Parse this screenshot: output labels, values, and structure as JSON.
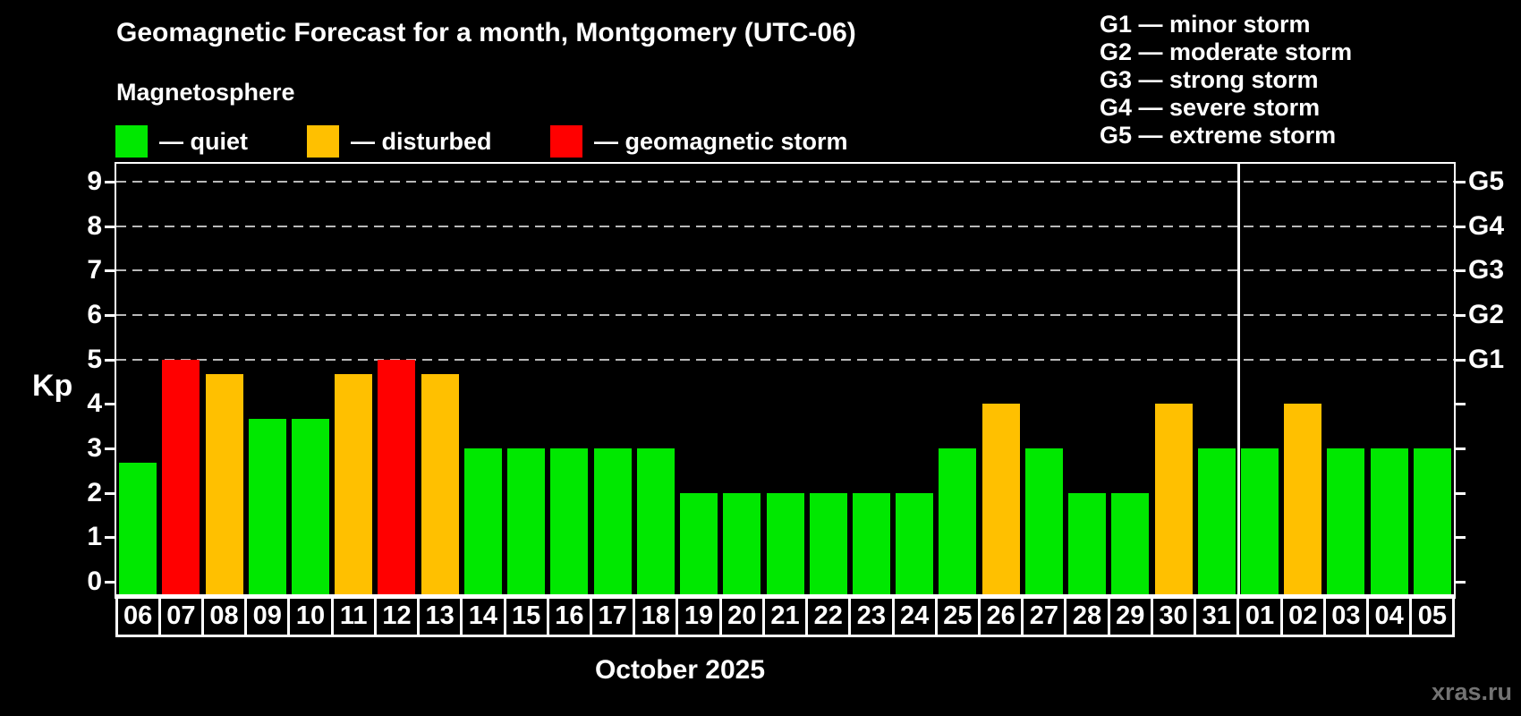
{
  "header": {
    "title": "Geomagnetic Forecast for a month, Montgomery (UTC-06)",
    "subtitle": "Magnetosphere"
  },
  "legend": {
    "items": [
      {
        "name": "quiet",
        "label": "— quiet",
        "color": "#00e800"
      },
      {
        "name": "disturbed",
        "label": "— disturbed",
        "color": "#ffc000"
      },
      {
        "name": "storm",
        "label": "— geomagnetic storm",
        "color": "#ff0000"
      }
    ]
  },
  "g_scale_legend": {
    "items": [
      "G1 — minor storm",
      "G2 — moderate storm",
      "G3 — strong storm",
      "G4 — severe storm",
      "G5 — extreme storm"
    ]
  },
  "axes": {
    "y_label": "Kp",
    "y_ticks": [
      0,
      1,
      2,
      3,
      4,
      5,
      6,
      7,
      8,
      9
    ],
    "right_labels": [
      {
        "kp": 5,
        "label": "G1"
      },
      {
        "kp": 6,
        "label": "G2"
      },
      {
        "kp": 7,
        "label": "G3"
      },
      {
        "kp": 8,
        "label": "G4"
      },
      {
        "kp": 9,
        "label": "G5"
      }
    ]
  },
  "footer": {
    "month_label": "October 2025",
    "watermark": "xras.ru"
  },
  "colors": {
    "background": "#000000",
    "axis": "#ffffff",
    "gridline": "#b9b9b9",
    "quiet": "#00e800",
    "disturbed": "#ffc000",
    "storm": "#ff0000",
    "watermark": "#737373"
  },
  "chart_data": {
    "type": "bar",
    "title": "Geomagnetic Forecast for a month, Montgomery (UTC-06)",
    "xlabel": "October 2025",
    "ylabel": "Kp",
    "ylim": [
      0,
      9
    ],
    "grid": "dashed horizontal lines at storm thresholds only",
    "gridlines_at": [
      5,
      6,
      7,
      8,
      9
    ],
    "legend_position": "top-left",
    "month_separator_index": 26,
    "categories": [
      "06",
      "07",
      "08",
      "09",
      "10",
      "11",
      "12",
      "13",
      "14",
      "15",
      "16",
      "17",
      "18",
      "19",
      "20",
      "21",
      "22",
      "23",
      "24",
      "25",
      "26",
      "27",
      "28",
      "29",
      "30",
      "31",
      "01",
      "02",
      "03",
      "04",
      "05"
    ],
    "series": [
      {
        "name": "Kp forecast",
        "points": [
          {
            "day": "06",
            "value": 2.67,
            "status": "quiet"
          },
          {
            "day": "07",
            "value": 5.0,
            "status": "storm"
          },
          {
            "day": "08",
            "value": 4.67,
            "status": "disturbed"
          },
          {
            "day": "09",
            "value": 3.67,
            "status": "quiet"
          },
          {
            "day": "10",
            "value": 3.67,
            "status": "quiet"
          },
          {
            "day": "11",
            "value": 4.67,
            "status": "disturbed"
          },
          {
            "day": "12",
            "value": 5.0,
            "status": "storm"
          },
          {
            "day": "13",
            "value": 4.67,
            "status": "disturbed"
          },
          {
            "day": "14",
            "value": 3.0,
            "status": "quiet"
          },
          {
            "day": "15",
            "value": 3.0,
            "status": "quiet"
          },
          {
            "day": "16",
            "value": 3.0,
            "status": "quiet"
          },
          {
            "day": "17",
            "value": 3.0,
            "status": "quiet"
          },
          {
            "day": "18",
            "value": 3.0,
            "status": "quiet"
          },
          {
            "day": "19",
            "value": 2.0,
            "status": "quiet"
          },
          {
            "day": "20",
            "value": 2.0,
            "status": "quiet"
          },
          {
            "day": "21",
            "value": 2.0,
            "status": "quiet"
          },
          {
            "day": "22",
            "value": 2.0,
            "status": "quiet"
          },
          {
            "day": "23",
            "value": 2.0,
            "status": "quiet"
          },
          {
            "day": "24",
            "value": 2.0,
            "status": "quiet"
          },
          {
            "day": "25",
            "value": 3.0,
            "status": "quiet"
          },
          {
            "day": "26",
            "value": 4.0,
            "status": "disturbed"
          },
          {
            "day": "27",
            "value": 3.0,
            "status": "quiet"
          },
          {
            "day": "28",
            "value": 2.0,
            "status": "quiet"
          },
          {
            "day": "29",
            "value": 2.0,
            "status": "quiet"
          },
          {
            "day": "30",
            "value": 4.0,
            "status": "disturbed"
          },
          {
            "day": "31",
            "value": 3.0,
            "status": "quiet"
          },
          {
            "day": "01",
            "value": 3.0,
            "status": "quiet"
          },
          {
            "day": "02",
            "value": 4.0,
            "status": "disturbed"
          },
          {
            "day": "03",
            "value": 3.0,
            "status": "quiet"
          },
          {
            "day": "04",
            "value": 3.0,
            "status": "quiet"
          },
          {
            "day": "05",
            "value": 3.0,
            "status": "quiet"
          }
        ]
      }
    ]
  }
}
